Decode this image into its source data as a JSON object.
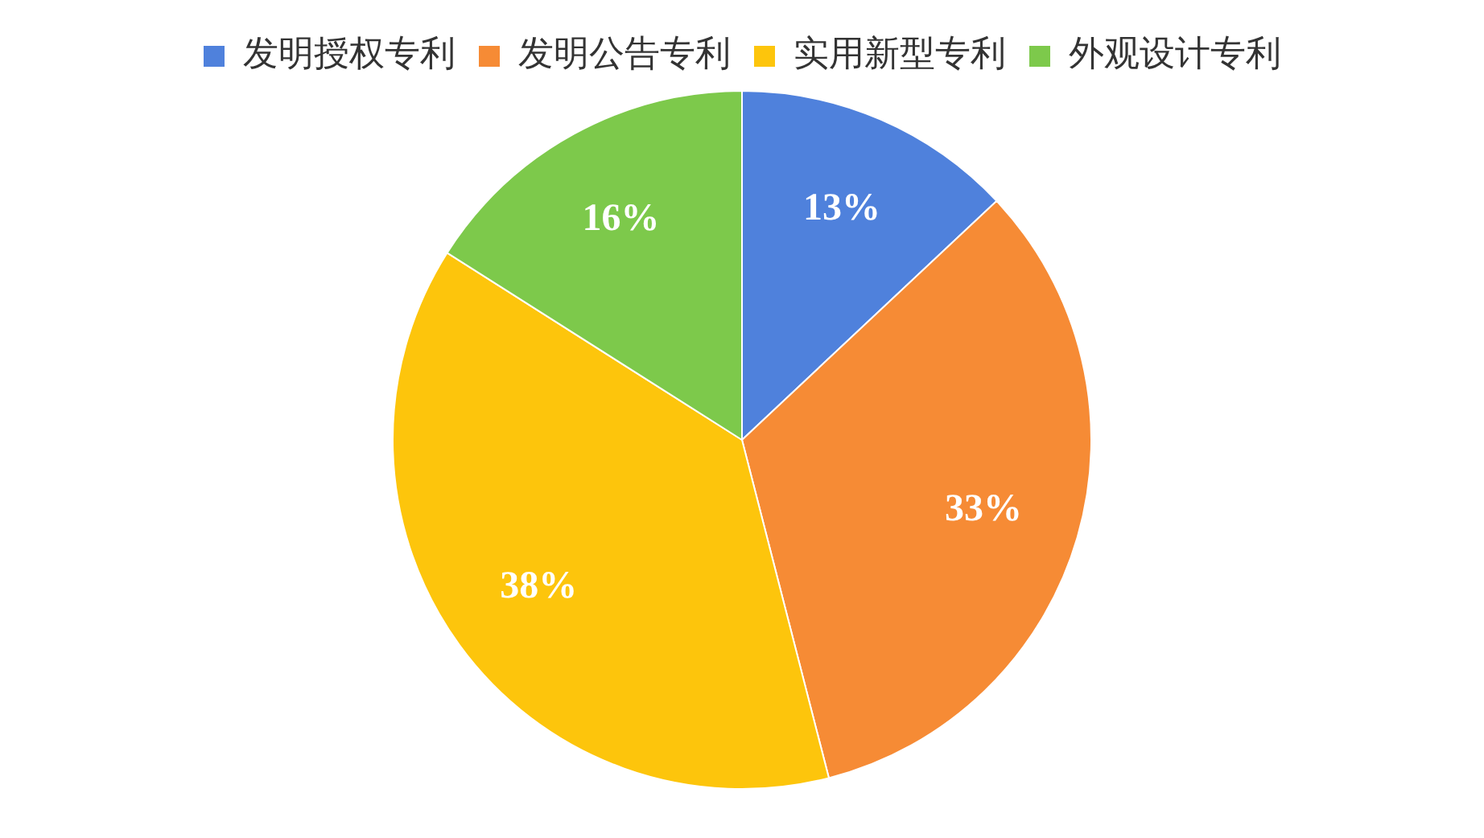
{
  "chart_data": {
    "type": "pie",
    "categories": [
      "发明授权专利",
      "发明公告专利",
      "实用新型专利",
      "外观设计专利"
    ],
    "values": [
      13,
      33,
      38,
      16
    ],
    "colors": [
      "#4f81dc",
      "#f68b35",
      "#fdc50c",
      "#7dc94b"
    ],
    "value_labels": [
      "13%",
      "33%",
      "38%",
      "16%"
    ],
    "legend": "top"
  }
}
